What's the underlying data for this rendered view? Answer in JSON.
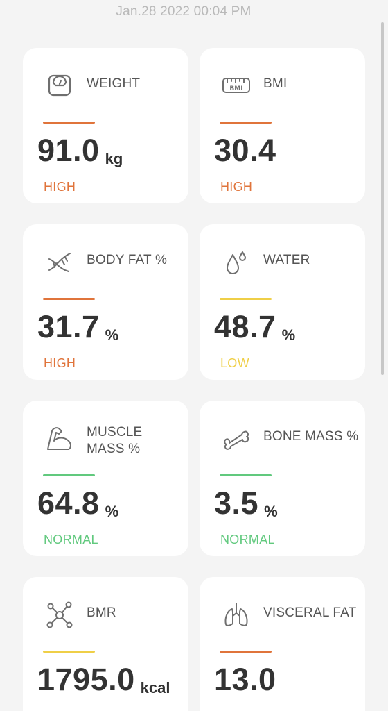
{
  "timestamp": "Jan.28 2022 00:04 PM",
  "colors": {
    "high": "#e0743b",
    "low": "#efcf47",
    "normal": "#61c97e"
  },
  "metrics": [
    {
      "label": "WEIGHT",
      "value": "91.0",
      "unit": "kg",
      "status": "HIGH",
      "level": "high",
      "icon": "scale-icon"
    },
    {
      "label": "BMI",
      "value": "30.4",
      "unit": "",
      "status": "HIGH",
      "level": "high",
      "icon": "bmi-icon"
    },
    {
      "label": "BODY FAT %",
      "value": "31.7",
      "unit": "%",
      "status": "HIGH",
      "level": "high",
      "icon": "dna-icon"
    },
    {
      "label": "WATER",
      "value": "48.7",
      "unit": "%",
      "status": "LOW",
      "level": "low",
      "icon": "water-drops-icon"
    },
    {
      "label": "MUSCLE MASS %",
      "value": "64.8",
      "unit": "%",
      "status": "NORMAL",
      "level": "normal",
      "icon": "muscle-arm-icon"
    },
    {
      "label": "BONE MASS %",
      "value": "3.5",
      "unit": "%",
      "status": "NORMAL",
      "level": "normal",
      "icon": "bone-icon"
    },
    {
      "label": "BMR",
      "value": "1795.0",
      "unit": "kcal",
      "status": "",
      "level": "low",
      "icon": "molecule-icon"
    },
    {
      "label": "VISCERAL FAT",
      "value": "13.0",
      "unit": "",
      "status": "",
      "level": "high",
      "icon": "lungs-icon"
    }
  ]
}
